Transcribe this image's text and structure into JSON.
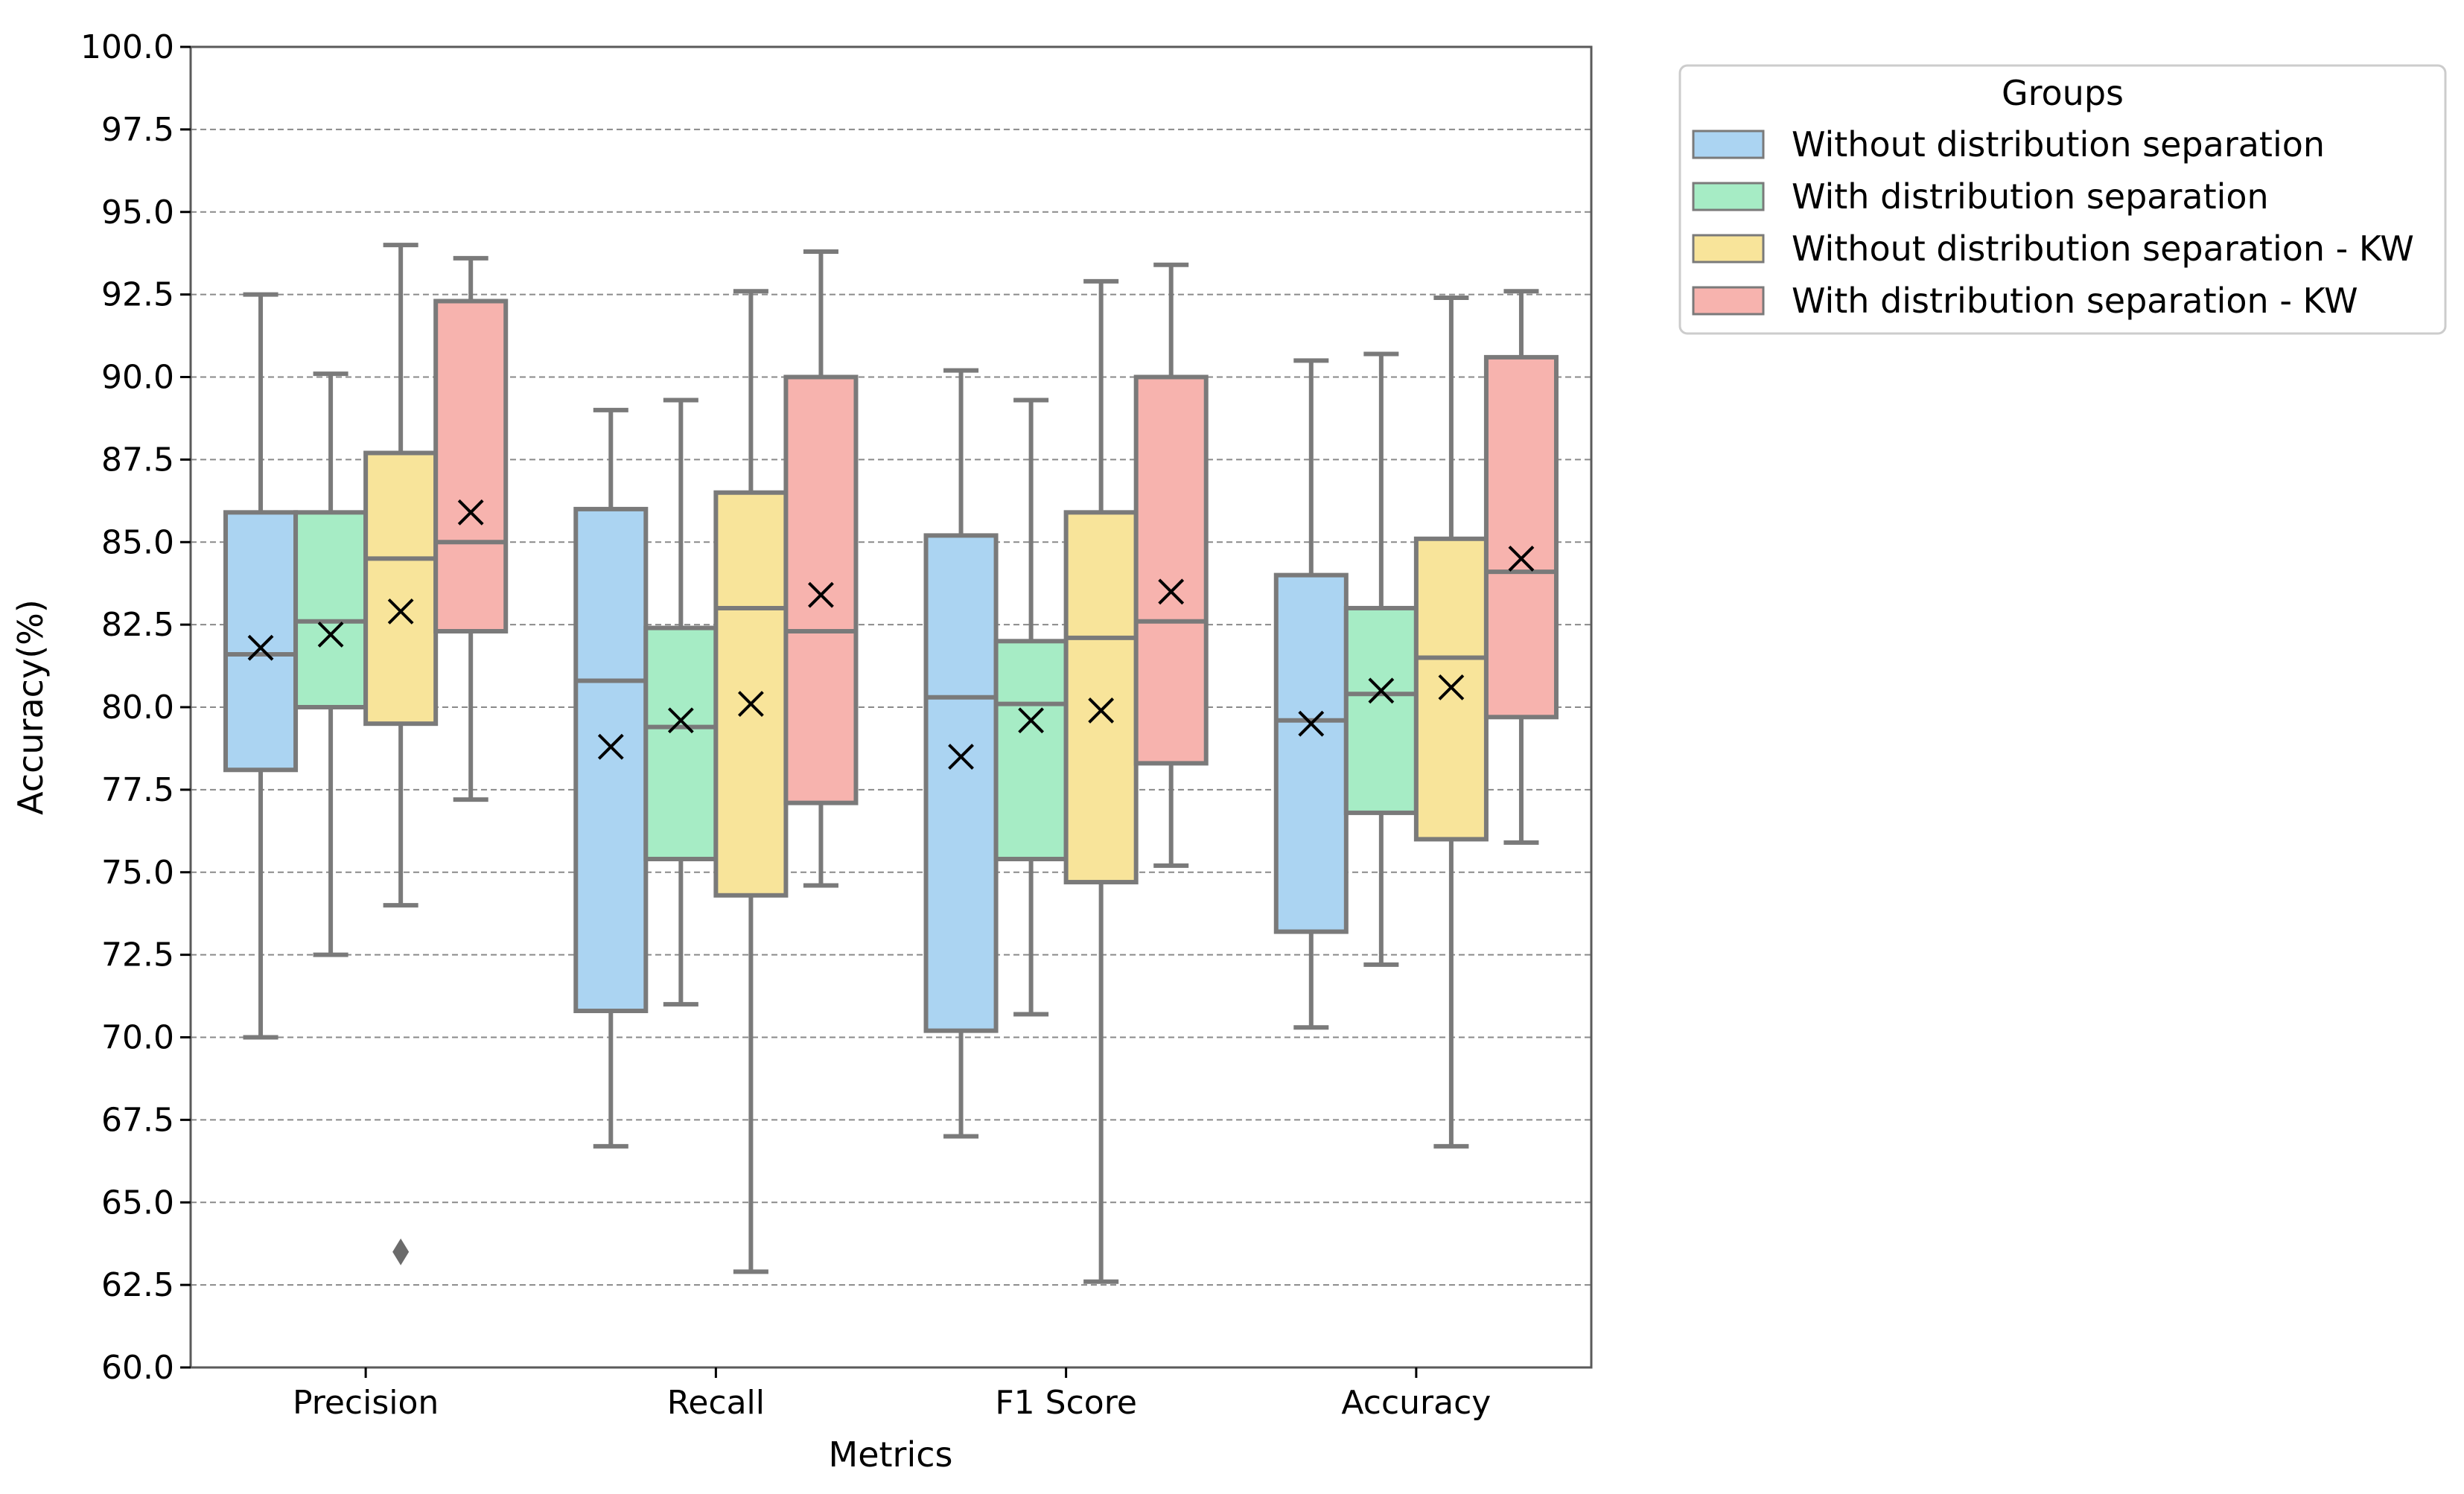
{
  "chart_data": {
    "type": "box",
    "xlabel": "Metrics",
    "ylabel": "Accuracy(%)",
    "ylim": [
      60,
      100
    ],
    "yticks": [
      "60.0",
      "62.5",
      "65.0",
      "67.5",
      "70.0",
      "72.5",
      "75.0",
      "77.5",
      "80.0",
      "82.5",
      "85.0",
      "87.5",
      "90.0",
      "92.5",
      "95.0",
      "97.5",
      "100.0"
    ],
    "grid": "horizontal dashed",
    "categories": [
      "Precision",
      "Recall",
      "F1 Score",
      "Accuracy"
    ],
    "legend": {
      "title": "Groups",
      "position": "outside top-right",
      "entries": [
        "Without distribution separation",
        "With distribution separation",
        "Without distribution separation - KW",
        "With distribution separation - KW"
      ]
    },
    "colors": [
      "#abd4f2",
      "#a6ecc5",
      "#f8e49a",
      "#f7b3ae"
    ],
    "edge_color": "#7a7a7a",
    "mean_marker": "x",
    "series": [
      {
        "name": "Without distribution separation",
        "boxes": [
          {
            "whisker_low": 70.0,
            "q1": 78.1,
            "median": 81.6,
            "q3": 85.9,
            "whisker_high": 92.5,
            "mean": 81.8
          },
          {
            "whisker_low": 66.7,
            "q1": 70.8,
            "median": 80.8,
            "q3": 86.0,
            "whisker_high": 89.0,
            "mean": 78.8
          },
          {
            "whisker_low": 67.0,
            "q1": 70.2,
            "median": 80.3,
            "q3": 85.2,
            "whisker_high": 90.2,
            "mean": 78.5
          },
          {
            "whisker_low": 70.3,
            "q1": 73.2,
            "median": 79.6,
            "q3": 84.0,
            "whisker_high": 90.5,
            "mean": 79.5
          }
        ]
      },
      {
        "name": "With distribution separation",
        "boxes": [
          {
            "whisker_low": 72.5,
            "q1": 80.0,
            "median": 82.6,
            "q3": 85.9,
            "whisker_high": 90.1,
            "mean": 82.2
          },
          {
            "whisker_low": 71.0,
            "q1": 75.4,
            "median": 79.4,
            "q3": 82.4,
            "whisker_high": 89.3,
            "mean": 79.6
          },
          {
            "whisker_low": 70.7,
            "q1": 75.4,
            "median": 80.1,
            "q3": 82.0,
            "whisker_high": 89.3,
            "mean": 79.6
          },
          {
            "whisker_low": 72.2,
            "q1": 76.8,
            "median": 80.4,
            "q3": 83.0,
            "whisker_high": 90.7,
            "mean": 80.5
          }
        ]
      },
      {
        "name": "Without distribution separation - KW",
        "boxes": [
          {
            "whisker_low": 74.0,
            "q1": 79.5,
            "median": 84.5,
            "q3": 87.7,
            "whisker_high": 94.0,
            "mean": 82.9,
            "outliers": [
              63.5
            ]
          },
          {
            "whisker_low": 62.9,
            "q1": 74.3,
            "median": 83.0,
            "q3": 86.5,
            "whisker_high": 92.6,
            "mean": 80.1
          },
          {
            "whisker_low": 62.6,
            "q1": 74.7,
            "median": 82.1,
            "q3": 85.9,
            "whisker_high": 92.9,
            "mean": 79.9
          },
          {
            "whisker_low": 66.7,
            "q1": 76.0,
            "median": 81.5,
            "q3": 85.1,
            "whisker_high": 92.4,
            "mean": 80.6
          }
        ]
      },
      {
        "name": "With distribution separation - KW",
        "boxes": [
          {
            "whisker_low": 77.2,
            "q1": 82.3,
            "median": 85.0,
            "q3": 92.3,
            "whisker_high": 93.6,
            "mean": 85.9
          },
          {
            "whisker_low": 74.6,
            "q1": 77.1,
            "median": 82.3,
            "q3": 90.0,
            "whisker_high": 93.8,
            "mean": 83.4
          },
          {
            "whisker_low": 75.2,
            "q1": 78.3,
            "median": 82.6,
            "q3": 90.0,
            "whisker_high": 93.4,
            "mean": 83.5
          },
          {
            "whisker_low": 75.9,
            "q1": 79.7,
            "median": 84.1,
            "q3": 90.6,
            "whisker_high": 92.6,
            "mean": 84.5
          }
        ]
      }
    ]
  }
}
